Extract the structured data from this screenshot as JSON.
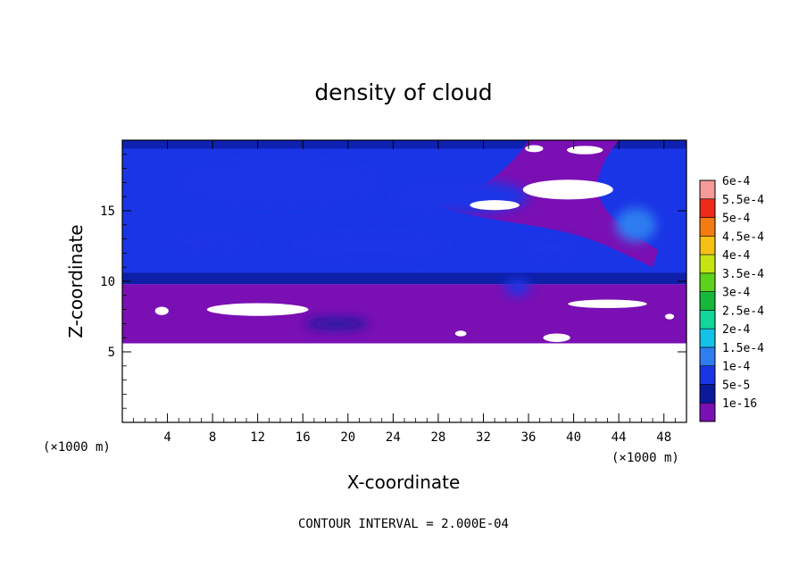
{
  "chart_data": {
    "type": "heatmap",
    "title": "density of cloud",
    "xlabel": "X-coordinate",
    "ylabel": "Z-coordinate",
    "x_unit": "(×1000 m)",
    "z_unit": "(×1000 m)",
    "xlim": [
      0,
      50
    ],
    "ylim": [
      0,
      20
    ],
    "x_ticks": [
      {
        "value": 4,
        "label": "4"
      },
      {
        "value": 8,
        "label": "8"
      },
      {
        "value": 12,
        "label": "12"
      },
      {
        "value": 16,
        "label": "16"
      },
      {
        "value": 20,
        "label": "20"
      },
      {
        "value": 24,
        "label": "24"
      },
      {
        "value": 28,
        "label": "28"
      },
      {
        "value": 32,
        "label": "32"
      },
      {
        "value": 36,
        "label": "36"
      },
      {
        "value": 40,
        "label": "40"
      },
      {
        "value": 44,
        "label": "44"
      },
      {
        "value": 48,
        "label": "48"
      }
    ],
    "y_ticks": [
      {
        "value": 5,
        "label": "5"
      },
      {
        "value": 10,
        "label": "10"
      },
      {
        "value": 15,
        "label": "15"
      }
    ],
    "colorbar": {
      "levels": [
        {
          "label": "1e-16",
          "color": "#7a0fb4"
        },
        {
          "label": "5e-5",
          "color": "#0a1a9a"
        },
        {
          "label": "1e-4",
          "color": "#1a35e6"
        },
        {
          "label": "1.5e-4",
          "color": "#2f7df0"
        },
        {
          "label": "2e-4",
          "color": "#14c2e8"
        },
        {
          "label": "2.5e-4",
          "color": "#12d69a"
        },
        {
          "label": "3e-4",
          "color": "#14b83a"
        },
        {
          "label": "3.5e-4",
          "color": "#5cd21a"
        },
        {
          "label": "4e-4",
          "color": "#c6e412"
        },
        {
          "label": "4.5e-4",
          "color": "#f5c014"
        },
        {
          "label": "5e-4",
          "color": "#f57a10"
        },
        {
          "label": "5.5e-4",
          "color": "#ee2a18"
        },
        {
          "label": "6e-4",
          "color": "#f49a98"
        }
      ]
    },
    "regions": {
      "cloud_bottom_z": 5.6,
      "purple_layer_top_z": 9.8,
      "note": ""
    },
    "blue_blobs": [
      {
        "x": 14,
        "z": 17,
        "rx": 9,
        "rz": 1.6,
        "level": 2
      },
      {
        "x": 30,
        "z": 16,
        "rx": 6,
        "rz": 1.2,
        "level": 2
      },
      {
        "x": 22,
        "z": 12.5,
        "rx": 7,
        "rz": 0.9,
        "level": 2
      },
      {
        "x": 8,
        "z": 12.8,
        "rx": 4,
        "rz": 0.7,
        "level": 2
      },
      {
        "x": 38,
        "z": 12.3,
        "rx": 3,
        "rz": 0.8,
        "level": 2
      },
      {
        "x": 45.5,
        "z": 14,
        "rx": 1.8,
        "rz": 1.2,
        "level": 3
      },
      {
        "x": 35,
        "z": 9.6,
        "rx": 1.1,
        "rz": 0.6,
        "level": 2
      },
      {
        "x": 19,
        "z": 7,
        "rx": 2.8,
        "rz": 0.35,
        "level": 1
      }
    ],
    "gaps": [
      {
        "x": 39.5,
        "z": 16.5,
        "rx": 4,
        "rz": 0.7
      },
      {
        "x": 33,
        "z": 15.4,
        "rx": 2.2,
        "rz": 0.35
      },
      {
        "x": 41,
        "z": 19.3,
        "rx": 1.6,
        "rz": 0.3
      },
      {
        "x": 36.5,
        "z": 19.4,
        "rx": 0.8,
        "rz": 0.25
      },
      {
        "x": 12,
        "z": 8,
        "rx": 4.5,
        "rz": 0.45
      },
      {
        "x": 43,
        "z": 8.4,
        "rx": 3.5,
        "rz": 0.3
      },
      {
        "x": 3.5,
        "z": 7.9,
        "rx": 0.6,
        "rz": 0.3
      },
      {
        "x": 38.5,
        "z": 6,
        "rx": 1.2,
        "rz": 0.3
      },
      {
        "x": 30,
        "z": 6.3,
        "rx": 0.5,
        "rz": 0.2
      },
      {
        "x": 48.5,
        "z": 7.5,
        "rx": 0.4,
        "rz": 0.2
      }
    ]
  },
  "footer": {
    "contour_interval": "CONTOUR INTERVAL = 2.000E-04"
  }
}
